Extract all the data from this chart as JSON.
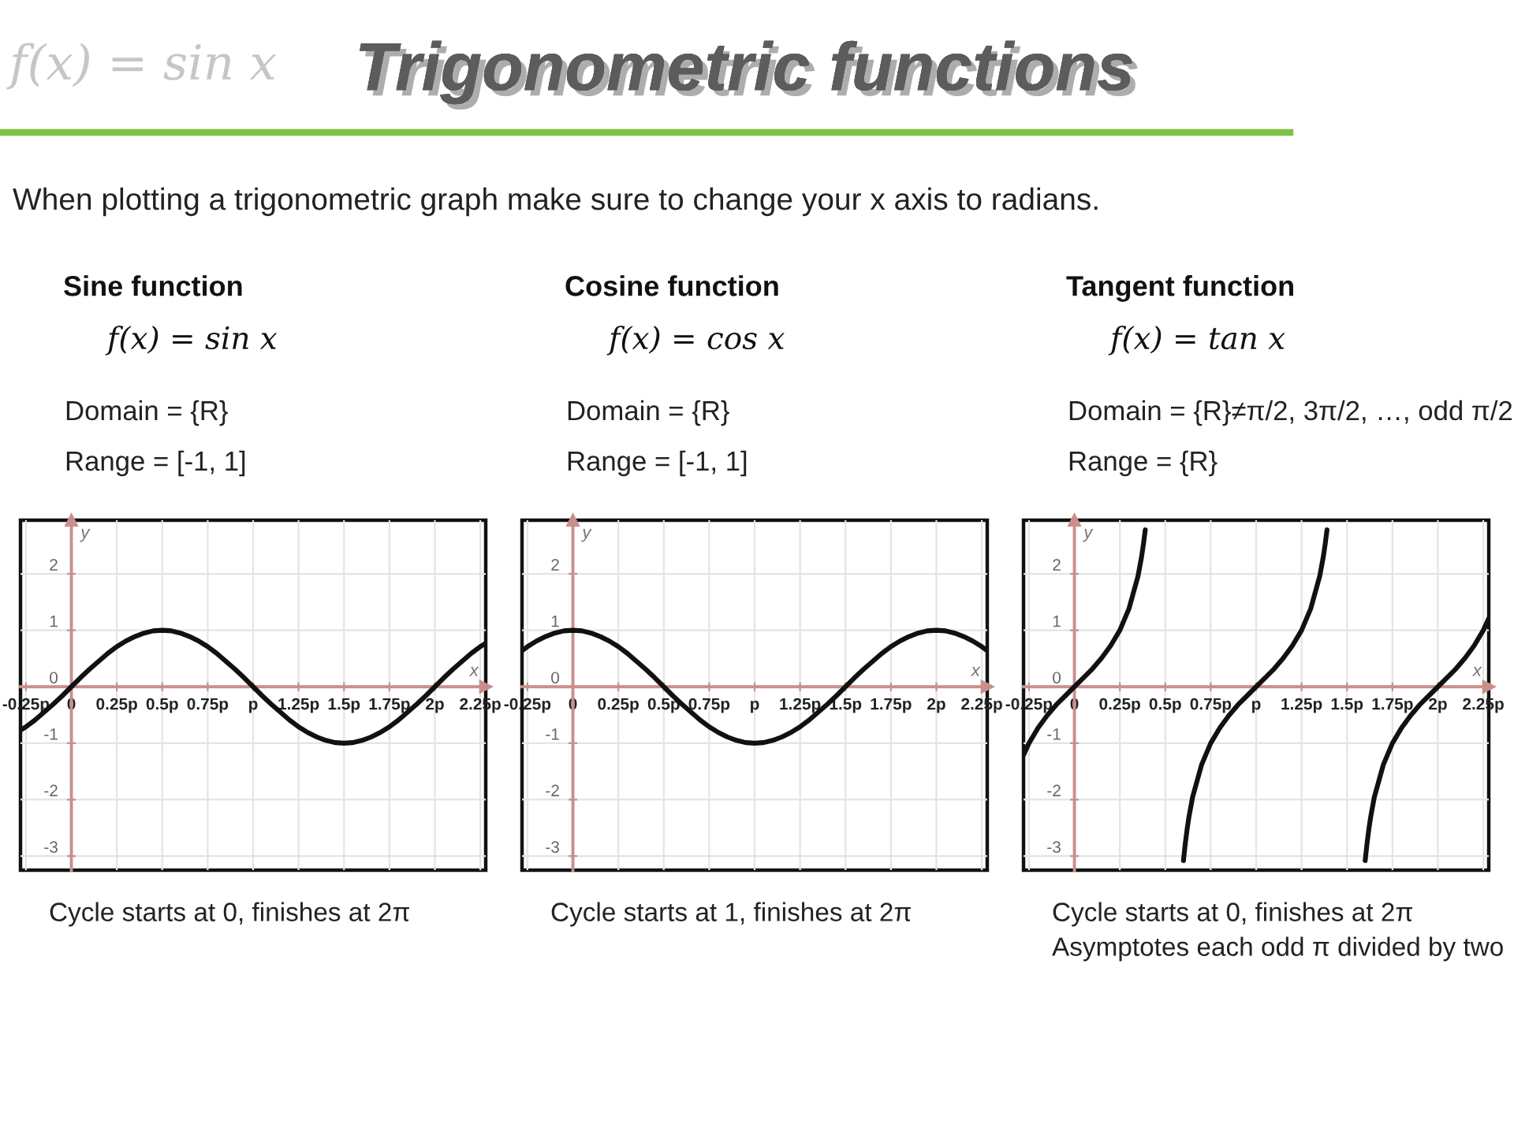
{
  "chart_data": [
    {
      "type": "other",
      "title": "Trigonometric functions",
      "subtitle": "When plotting a trigonometric graph make sure to change your x axis to radians.",
      "annotations": [
        "f(x) = sin x"
      ]
    },
    {
      "type": "line",
      "title": "Sine function",
      "subtitle": "f(x) = sin x",
      "xlabel": "x",
      "ylabel": "y",
      "annotations": [
        "Domain = {R}",
        "Range = [-1, 1]",
        "Cycle starts at 0, finishes at 2π"
      ],
      "x": [
        -0.28,
        -0.25,
        -0.2,
        -0.15,
        -0.1,
        -0.05,
        0,
        0.05,
        0.1,
        0.15,
        0.2,
        0.25,
        0.3,
        0.35,
        0.4,
        0.45,
        0.5,
        0.55,
        0.6,
        0.65,
        0.7,
        0.75,
        0.8,
        0.85,
        0.9,
        0.95,
        1,
        1.05,
        1.1,
        1.15,
        1.2,
        1.25,
        1.3,
        1.35,
        1.4,
        1.45,
        1.5,
        1.55,
        1.6,
        1.65,
        1.7,
        1.75,
        1.8,
        1.85,
        1.9,
        1.95,
        2,
        2.05,
        2.1,
        2.15,
        2.2,
        2.25,
        2.28
      ],
      "series": [
        {
          "color": "#111111",
          "values": [
            -0.77,
            -0.71,
            -0.59,
            -0.45,
            -0.31,
            -0.16,
            0,
            0.16,
            0.31,
            0.45,
            0.59,
            0.71,
            0.81,
            0.89,
            0.95,
            0.99,
            1,
            0.99,
            0.95,
            0.89,
            0.81,
            0.71,
            0.59,
            0.45,
            0.31,
            0.16,
            0,
            -0.16,
            -0.31,
            -0.45,
            -0.59,
            -0.71,
            -0.81,
            -0.89,
            -0.95,
            -0.99,
            -1,
            -0.99,
            -0.95,
            -0.89,
            -0.81,
            -0.71,
            -0.59,
            -0.45,
            -0.31,
            -0.16,
            0,
            0.16,
            0.31,
            0.45,
            0.59,
            0.71,
            0.77
          ]
        }
      ],
      "xlim": [
        -0.28,
        2.28
      ],
      "ylim": [
        -3.25,
        2.95
      ],
      "xticks": [
        {
          "value": -0.25,
          "label": "-0.25p"
        },
        0,
        {
          "value": 0.25,
          "label": "0.25p"
        },
        {
          "value": 0.5,
          "label": "0.5p"
        },
        {
          "value": 0.75,
          "label": "0.75p"
        },
        {
          "value": 1,
          "label": "p"
        },
        {
          "value": 1.25,
          "label": "1.25p"
        },
        {
          "value": 1.5,
          "label": "1.5p"
        },
        {
          "value": 1.75,
          "label": "1.75p"
        },
        {
          "value": 2,
          "label": "2p"
        },
        {
          "value": 2.25,
          "label": "2.25p"
        }
      ],
      "yticks": [
        -3,
        -2,
        -1,
        0,
        1,
        2
      ],
      "grid": true
    },
    {
      "type": "line",
      "title": "Cosine function",
      "subtitle": "f(x) = cos x",
      "xlabel": "x",
      "ylabel": "y",
      "annotations": [
        "Domain = {R}",
        "Range = [-1, 1]",
        "Cycle starts at 1, finishes at 2π"
      ],
      "x": [
        -0.28,
        -0.25,
        -0.2,
        -0.15,
        -0.1,
        -0.05,
        0,
        0.05,
        0.1,
        0.15,
        0.2,
        0.25,
        0.3,
        0.35,
        0.4,
        0.45,
        0.5,
        0.55,
        0.6,
        0.65,
        0.7,
        0.75,
        0.8,
        0.85,
        0.9,
        0.95,
        1,
        1.05,
        1.1,
        1.15,
        1.2,
        1.25,
        1.3,
        1.35,
        1.4,
        1.45,
        1.5,
        1.55,
        1.6,
        1.65,
        1.7,
        1.75,
        1.8,
        1.85,
        1.9,
        1.95,
        2,
        2.05,
        2.1,
        2.15,
        2.2,
        2.25,
        2.28
      ],
      "series": [
        {
          "color": "#111111",
          "values": [
            0.64,
            0.71,
            0.81,
            0.89,
            0.95,
            0.99,
            1,
            0.99,
            0.95,
            0.89,
            0.81,
            0.71,
            0.59,
            0.45,
            0.31,
            0.16,
            0,
            -0.16,
            -0.31,
            -0.45,
            -0.59,
            -0.71,
            -0.81,
            -0.89,
            -0.95,
            -0.99,
            -1,
            -0.99,
            -0.95,
            -0.89,
            -0.81,
            -0.71,
            -0.59,
            -0.45,
            -0.31,
            -0.16,
            0,
            0.16,
            0.31,
            0.45,
            0.59,
            0.71,
            0.81,
            0.89,
            0.95,
            0.99,
            1,
            0.99,
            0.95,
            0.89,
            0.81,
            0.71,
            0.64
          ]
        }
      ],
      "xlim": [
        -0.28,
        2.28
      ],
      "ylim": [
        -3.25,
        2.95
      ],
      "xticks": [
        {
          "value": -0.25,
          "label": "-0.25p"
        },
        0,
        {
          "value": 0.25,
          "label": "0.25p"
        },
        {
          "value": 0.5,
          "label": "0.5p"
        },
        {
          "value": 0.75,
          "label": "0.75p"
        },
        {
          "value": 1,
          "label": "p"
        },
        {
          "value": 1.25,
          "label": "1.25p"
        },
        {
          "value": 1.5,
          "label": "1.5p"
        },
        {
          "value": 1.75,
          "label": "1.75p"
        },
        {
          "value": 2,
          "label": "2p"
        },
        {
          "value": 2.25,
          "label": "2.25p"
        }
      ],
      "yticks": [
        -3,
        -2,
        -1,
        0,
        1,
        2
      ],
      "grid": true
    },
    {
      "type": "line",
      "title": "Tangent function",
      "subtitle": "f(x) = tan x",
      "xlabel": "x",
      "ylabel": "y",
      "annotations": [
        "Domain = {R}≠π/2, 3π/2, …, odd π/2",
        "Range = {R}",
        "Cycle starts at 0, finishes at 2π",
        "Asymptotes each odd π divided by two"
      ],
      "x": [
        -0.28,
        -0.25,
        -0.2,
        -0.15,
        -0.1,
        -0.05,
        0,
        0.05,
        0.1,
        0.15,
        0.2,
        0.25,
        0.3,
        0.35,
        0.37,
        0.38,
        0.39,
        0.5,
        0.6,
        0.61,
        0.62,
        0.63,
        0.65,
        0.7,
        0.75,
        0.8,
        0.85,
        0.9,
        0.95,
        1,
        1.05,
        1.1,
        1.15,
        1.2,
        1.25,
        1.3,
        1.35,
        1.37,
        1.38,
        1.39,
        1.5,
        1.6,
        1.61,
        1.62,
        1.63,
        1.65,
        1.7,
        1.75,
        1.8,
        1.85,
        1.9,
        1.95,
        2,
        2.05,
        2.1,
        2.15,
        2.2,
        2.25,
        2.28
      ],
      "series": [
        {
          "color": "#111111",
          "values": [
            -1.21,
            -1,
            -0.73,
            -0.51,
            -0.32,
            -0.16,
            0,
            0.16,
            0.32,
            0.51,
            0.73,
            1,
            1.38,
            1.96,
            2.31,
            2.53,
            2.78,
            null,
            -3.08,
            -2.78,
            -2.53,
            -2.31,
            -1.96,
            -1.38,
            -1,
            -0.73,
            -0.51,
            -0.32,
            -0.16,
            0,
            0.16,
            0.32,
            0.51,
            0.73,
            1,
            1.38,
            1.96,
            2.31,
            2.53,
            2.78,
            null,
            -3.08,
            -2.78,
            -2.53,
            -2.31,
            -1.96,
            -1.38,
            -1,
            -0.73,
            -0.51,
            -0.32,
            -0.16,
            0,
            0.16,
            0.32,
            0.51,
            0.73,
            1,
            1.21
          ]
        }
      ],
      "xlim": [
        -0.28,
        2.28
      ],
      "ylim": [
        -3.25,
        2.95
      ],
      "xticks": [
        {
          "value": -0.25,
          "label": "-0.25p"
        },
        0,
        {
          "value": 0.25,
          "label": "0.25p"
        },
        {
          "value": 0.5,
          "label": "0.5p"
        },
        {
          "value": 0.75,
          "label": "0.75p"
        },
        {
          "value": 1,
          "label": "p"
        },
        {
          "value": 1.25,
          "label": "1.25p"
        },
        {
          "value": 1.5,
          "label": "1.5p"
        },
        {
          "value": 1.75,
          "label": "1.75p"
        },
        {
          "value": 2,
          "label": "2p"
        },
        {
          "value": 2.25,
          "label": "2.25p"
        }
      ],
      "yticks": [
        -3,
        -2,
        -1,
        0,
        1,
        2
      ],
      "grid": true
    }
  ]
}
